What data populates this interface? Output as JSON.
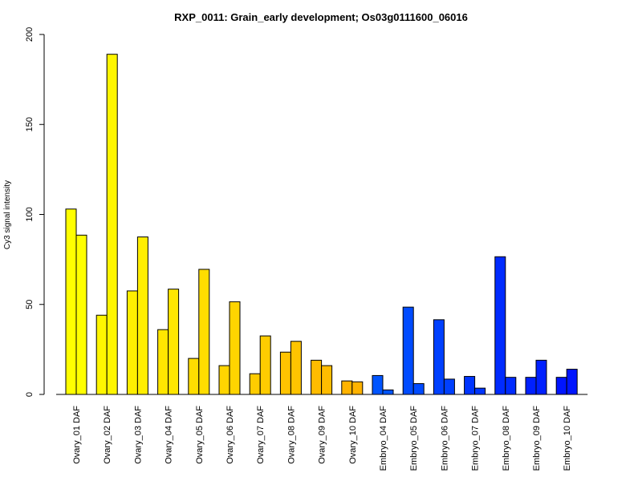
{
  "chart_data": {
    "type": "bar",
    "title": "RXP_0011: Grain_early development; Os03g0111600_06016",
    "ylabel": "Cy3 signal intensity",
    "xlabel": "",
    "ylim": [
      0,
      200
    ],
    "yticks": [
      0,
      50,
      100,
      150,
      200
    ],
    "grid": false,
    "legend": "none",
    "categories": [
      "Ovary_01 DAF",
      "Ovary_02 DAF",
      "Ovary_03 DAF",
      "Ovary_04 DAF",
      "Ovary_05 DAF",
      "Ovary_06 DAF",
      "Ovary_07 DAF",
      "Ovary_08 DAF",
      "Ovary_09 DAF",
      "Ovary_10 DAF",
      "Embryo_04 DAF",
      "Embryo_05 DAF",
      "Embryo_06 DAF",
      "Embryo_07 DAF",
      "Embryo_08 DAF",
      "Embryo_09 DAF",
      "Embryo_10 DAF"
    ],
    "colors": [
      "#ffff00",
      "#fff600",
      "#ffee00",
      "#ffe600",
      "#ffdd00",
      "#ffd500",
      "#ffcc00",
      "#ffc400",
      "#ffbc00",
      "#ffb300",
      "#0055ff",
      "#004bff",
      "#0040ff",
      "#0035ff",
      "#002bff",
      "#0020ff",
      "#0015ff"
    ],
    "series": [
      {
        "values": [
          103,
          44,
          57.5,
          36,
          20,
          16,
          11.5,
          23.5,
          19,
          7.5,
          10.5,
          48.5,
          41.5,
          10,
          76.5,
          9.5,
          9.5
        ]
      },
      {
        "values": [
          88.5,
          189,
          87.5,
          58.5,
          69.5,
          51.5,
          32.5,
          29.5,
          16,
          7,
          2.5,
          6,
          8.5,
          3.5,
          9.5,
          19,
          14
        ]
      }
    ]
  }
}
